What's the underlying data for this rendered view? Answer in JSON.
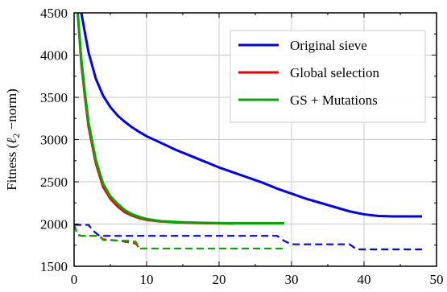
{
  "chart_data": {
    "type": "line",
    "title": "",
    "xlabel": "",
    "ylabel": "Fitness (ℓ₂−norm)",
    "ylabel_parts": {
      "prefix": "Fitness (",
      "ell": "ℓ",
      "sub": "2",
      "suffix": " −norm)"
    },
    "xlim": [
      0,
      50
    ],
    "ylim": [
      1500,
      4500
    ],
    "xticks": [
      0,
      10,
      20,
      30,
      40,
      50
    ],
    "yticks": [
      1500,
      2000,
      2500,
      3000,
      3500,
      4000,
      4500
    ],
    "grid": true,
    "legend": {
      "placement": "top-right"
    },
    "series": [
      {
        "name": "Original sieve",
        "color": "#0000ee",
        "style": "solid",
        "x": [
          1,
          1.5,
          2,
          3,
          4,
          5,
          6,
          7,
          8,
          9,
          10,
          12,
          14,
          16,
          18,
          20,
          22,
          24,
          26,
          28,
          30,
          32,
          34,
          36,
          38,
          40,
          42,
          44,
          46,
          48
        ],
        "y": [
          4500,
          4260,
          4030,
          3720,
          3520,
          3385,
          3285,
          3210,
          3145,
          3090,
          3040,
          2960,
          2880,
          2810,
          2740,
          2670,
          2610,
          2550,
          2490,
          2420,
          2360,
          2300,
          2250,
          2200,
          2150,
          2115,
          2095,
          2090,
          2090,
          2090
        ]
      },
      {
        "name": "Global selection",
        "color": "#ee0000",
        "style": "solid",
        "x": [
          0.5,
          1,
          1.5,
          2,
          3,
          4,
          5,
          6,
          7,
          8,
          9,
          10,
          12,
          14,
          16,
          18,
          20,
          22
        ],
        "y": [
          4500,
          3900,
          3500,
          3150,
          2720,
          2440,
          2300,
          2210,
          2140,
          2100,
          2070,
          2050,
          2030,
          2020,
          2015,
          2010,
          2008,
          2005
        ]
      },
      {
        "name": "GS + Mutations",
        "color": "#00aa00",
        "style": "solid",
        "x": [
          0.5,
          1,
          1.5,
          2,
          3,
          4,
          5,
          6,
          7,
          8,
          9,
          10,
          12,
          14,
          16,
          18,
          20,
          22,
          24,
          26,
          28,
          29
        ],
        "y": [
          4500,
          3950,
          3550,
          3200,
          2760,
          2480,
          2330,
          2240,
          2165,
          2115,
          2085,
          2060,
          2035,
          2025,
          2018,
          2014,
          2012,
          2010,
          2010,
          2010,
          2010,
          2010
        ]
      },
      {
        "name": "",
        "color": "#0000ee",
        "style": "dashed",
        "x": [
          0,
          2,
          2.5,
          3.5,
          10,
          20,
          28,
          29,
          30,
          38,
          39,
          48
        ],
        "y": [
          1990,
          1990,
          1930,
          1860,
          1860,
          1860,
          1860,
          1800,
          1760,
          1760,
          1700,
          1700
        ]
      },
      {
        "name": "",
        "color": "#ee0000",
        "style": "dashed",
        "x": [
          0,
          0.5,
          1,
          3.5,
          4,
          6.5,
          7,
          8.5,
          9,
          10
        ],
        "y": [
          1990,
          1870,
          1860,
          1860,
          1820,
          1800,
          1790,
          1770,
          1710,
          1710
        ]
      },
      {
        "name": "",
        "color": "#00aa00",
        "style": "dashed",
        "x": [
          0,
          0.5,
          1,
          3.5,
          4,
          8,
          8.5,
          9,
          10,
          20,
          29
        ],
        "y": [
          1990,
          1880,
          1860,
          1860,
          1810,
          1800,
          1790,
          1710,
          1710,
          1710,
          1710
        ]
      }
    ]
  }
}
